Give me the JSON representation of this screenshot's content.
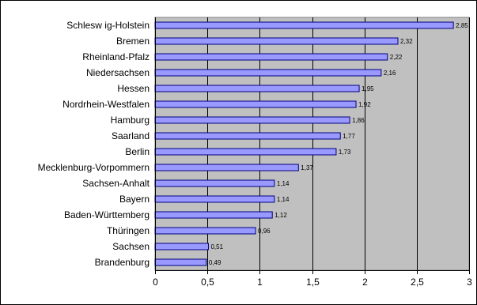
{
  "chart_data": {
    "type": "bar",
    "orientation": "horizontal",
    "categories": [
      "Schlesw ig-Holstein",
      "Bremen",
      "Rheinland-Pfalz",
      "Niedersachsen",
      "Hessen",
      "Nordrhein-Westfalen",
      "Hamburg",
      "Saarland",
      "Berlin",
      "Mecklenburg-Vorpommern",
      "Sachsen-Anhalt",
      "Bayern",
      "Baden-Württemberg",
      "Thüringen",
      "Sachsen",
      "Brandenburg"
    ],
    "values": [
      2.85,
      2.32,
      2.22,
      2.16,
      1.95,
      1.92,
      1.86,
      1.77,
      1.73,
      1.37,
      1.14,
      1.14,
      1.12,
      0.96,
      0.51,
      0.49
    ],
    "value_labels": [
      "2,85",
      "2,32",
      "2,22",
      "2,16",
      "1,95",
      "1,92",
      "1,86",
      "1,77",
      "1,73",
      "1,37",
      "1,14",
      "1,14",
      "1,12",
      "0,96",
      "0,51",
      "0,49"
    ],
    "x_ticks": [
      0,
      0.5,
      1,
      1.5,
      2,
      2.5,
      3
    ],
    "x_tick_labels": [
      "0",
      "0,5",
      "1",
      "1,5",
      "2",
      "2,5",
      "3"
    ],
    "xlim": [
      0,
      3
    ],
    "title": "",
    "xlabel": "",
    "ylabel": "",
    "grid": "vertical",
    "legend": "none",
    "colors": {
      "plot_bg": "#c0c0c0",
      "bar_fill": "#9999ff",
      "bar_stroke": "#000080",
      "grid": "#000000"
    }
  }
}
